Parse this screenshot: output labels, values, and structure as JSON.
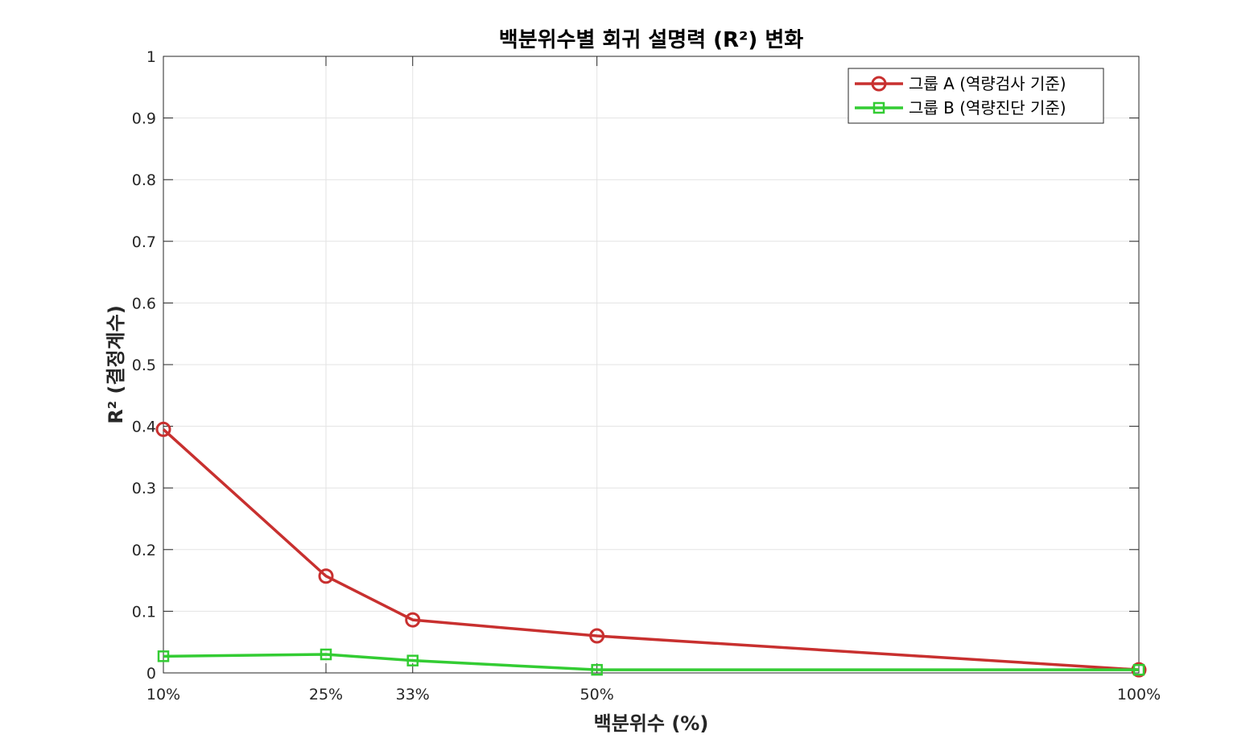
{
  "chart_data": {
    "type": "line",
    "title": "백분위수별 회귀 설명력 (R²) 변화",
    "xlabel": "백분위수 (%)",
    "ylabel": "R² (결정계수)",
    "x": [
      10,
      25,
      33,
      50,
      100
    ],
    "x_tick_labels": [
      "10%",
      "25%",
      "33%",
      "50%",
      "100%"
    ],
    "xlim": [
      10,
      100
    ],
    "ylim": [
      0,
      1
    ],
    "y_ticks": [
      0,
      0.1,
      0.2,
      0.3,
      0.4,
      0.5,
      0.6,
      0.7,
      0.8,
      0.9,
      1
    ],
    "y_tick_labels": [
      "0",
      "0.1",
      "0.2",
      "0.3",
      "0.4",
      "0.5",
      "0.6",
      "0.7",
      "0.8",
      "0.9",
      "1"
    ],
    "grid": true,
    "legend_position": "top-right",
    "series": [
      {
        "name": "그룹 A (역량검사 기준)",
        "values": [
          0.395,
          0.157,
          0.086,
          0.06,
          0.005
        ],
        "color": "#c8302f",
        "marker": "circle"
      },
      {
        "name": "그룹 B (역량진단 기준)",
        "values": [
          0.027,
          0.03,
          0.02,
          0.005,
          0.005
        ],
        "color": "#33cc33",
        "marker": "square"
      }
    ]
  }
}
